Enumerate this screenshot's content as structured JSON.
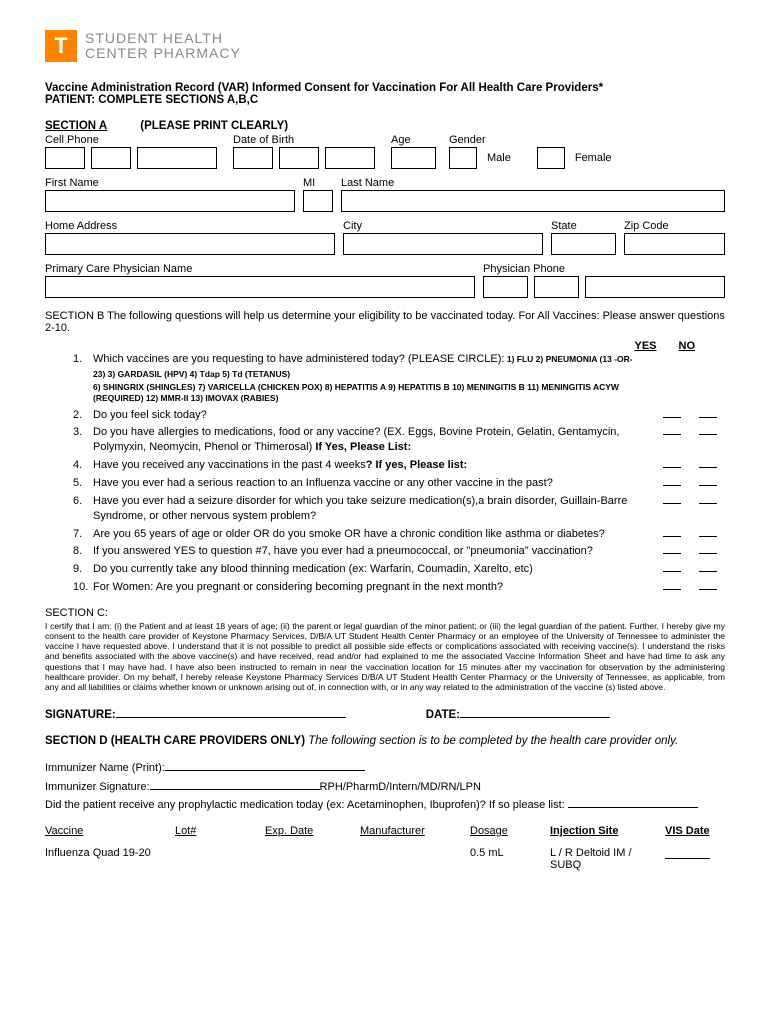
{
  "logo": {
    "letter": "T",
    "line1": "STUDENT HEALTH",
    "line2": "CENTER PHARMACY"
  },
  "title": {
    "line1": "Vaccine Administration Record (VAR) Informed Consent for Vaccination For All Health Care Providers*",
    "line2": "PATIENT: COMPLETE SECTIONS A,B,C"
  },
  "sectionA": {
    "header": "SECTION A",
    "note": "(PLEASE PRINT CLEARLY)",
    "labels": {
      "cellPhone": "Cell Phone",
      "dob": "Date of Birth",
      "age": "Age",
      "gender": "Gender",
      "male": "Male",
      "female": "Female",
      "firstName": "First Name",
      "mi": "MI",
      "lastName": "Last Name",
      "homeAddress": "Home Address",
      "city": "City",
      "state": "State",
      "zip": "Zip Code",
      "pcp": "Primary Care Physician Name",
      "physPhone": "Physician Phone"
    }
  },
  "sectionB": {
    "intro": "SECTION B  The following questions will help us determine your eligibility to be vaccinated today. For All Vaccines: Please answer questions 2-10.",
    "yes": "YES",
    "no": "NO",
    "questions": [
      {
        "num": "1.",
        "text": "Which vaccines are you requesting to have administered today? (PLEASE CIRCLE):",
        "opts": "1) FLU   2) PNEUMONIA (13 -OR-  23)   3) GARDASIL (HPV)   4) Tdap   5) Td (TETANUS)",
        "opts2": "6) SHINGRIX (SHINGLES)   7) VARICELLA (CHICKEN POX)   8) HEPATITIS A   9) HEPATITIS B   10) MENINGITIS B   11) MENINGITIS ACYW (REQUIRED)   12) MMR-II   13) IMOVAX (RABIES)",
        "yn": false
      },
      {
        "num": "2.",
        "text": "Do you feel sick today?",
        "yn": true
      },
      {
        "num": "3.",
        "text": "Do you have allergies to medications, food or any vaccine? (EX. Eggs, Bovine Protein, Gelatin, Gentamycin, Polymyxin, Neomycin, Phenol or Thimerosal) <b>If Yes, Please List:</b>",
        "yn": true
      },
      {
        "num": "4.",
        "text": "Have you received any vaccinations in the past 4 weeks<b>? If yes, Please list:</b>",
        "yn": true
      },
      {
        "num": "5.",
        "text": "Have you ever had a serious reaction to an Influenza vaccine or any other vaccine in the past?",
        "yn": true
      },
      {
        "num": "6.",
        "text": "Have you ever had a seizure disorder for which you take seizure medication(s),a brain disorder, Guillain-Barre Syndrome, or other nervous system problem?",
        "yn": true
      },
      {
        "num": "7.",
        "text": "Are you 65 years of age or older OR do you smoke OR have a chronic condition like asthma or diabetes?",
        "yn": true
      },
      {
        "num": "8.",
        "text": "If you answered YES to question #7, have you ever had a pneumococcal, or \"pneumonia\" vaccination?",
        "yn": true
      },
      {
        "num": "9.",
        "text": "Do you currently take any blood thinning medication (ex: Warfarin, Coumadin, Xarelto, etc)",
        "yn": true
      },
      {
        "num": "10.",
        "text": "For Women: Are you pregnant or considering becoming pregnant in the next month?",
        "yn": true
      }
    ]
  },
  "sectionC": {
    "label": "SECTION C:",
    "text": "I certify that I am: (i) the Patient and at least 18 years of age; (ii) the parent or legal guardian of the minor patient; or (iii) the legal guardian of the patient. Further, I hereby give my consent to the health care provider of Keystone Pharmacy Services, D/B/A UT Student Health Center Pharmacy or an employee of the University of Tennessee to administer the vaccine I have requested above. I understand that it is not possible to predict all possible side effects or complications associated with receiving vaccine(s). I understand the risks and benefits associated with the above vaccine(s) and have received, read and/or had explained to me the associated Vaccine Information Sheet and have had time to ask any questions that I may have had. I have also been instructed to remain in near the vaccination location for 15 minutes after my vaccination for observation by the administering healthcare provider. On my behalf, I hereby release Keystone Pharmacy Services D/B/A UT Student Health Center Pharmacy or the University of Tennessee, as applicable, from any and all liabilities or claims whether known or unknown arising out of, in connection with, or in any way related to the administration of the vaccine (s) listed above."
  },
  "sig": {
    "signature": "SIGNATURE:",
    "date": "DATE:"
  },
  "sectionD": {
    "header": "SECTION D (HEALTH CARE PROVIDERS ONLY)",
    "note": "The following section is to be completed by the health care provider only.",
    "immunizerName": "Immunizer Name (Print):",
    "immunizerSig": "Immunizer Signature:",
    "creds": "RPH/PharmD/Intern/MD/RN/LPN",
    "prophylactic": "Did the patient receive any prophylactic medication today (ex: Acetaminophen, Ibuprofen)? If so please list:",
    "cols": {
      "vaccine": "Vaccine",
      "lot": "Lot#",
      "exp": "Exp. Date",
      "mfr": "Manufacturer",
      "dosage": "Dosage",
      "site": "Injection Site",
      "vis": "VIS Date"
    },
    "row": {
      "vaccine": "Influenza Quad 19-20",
      "dosage": "0.5 mL",
      "site": "L / R Deltoid IM / SUBQ"
    }
  }
}
